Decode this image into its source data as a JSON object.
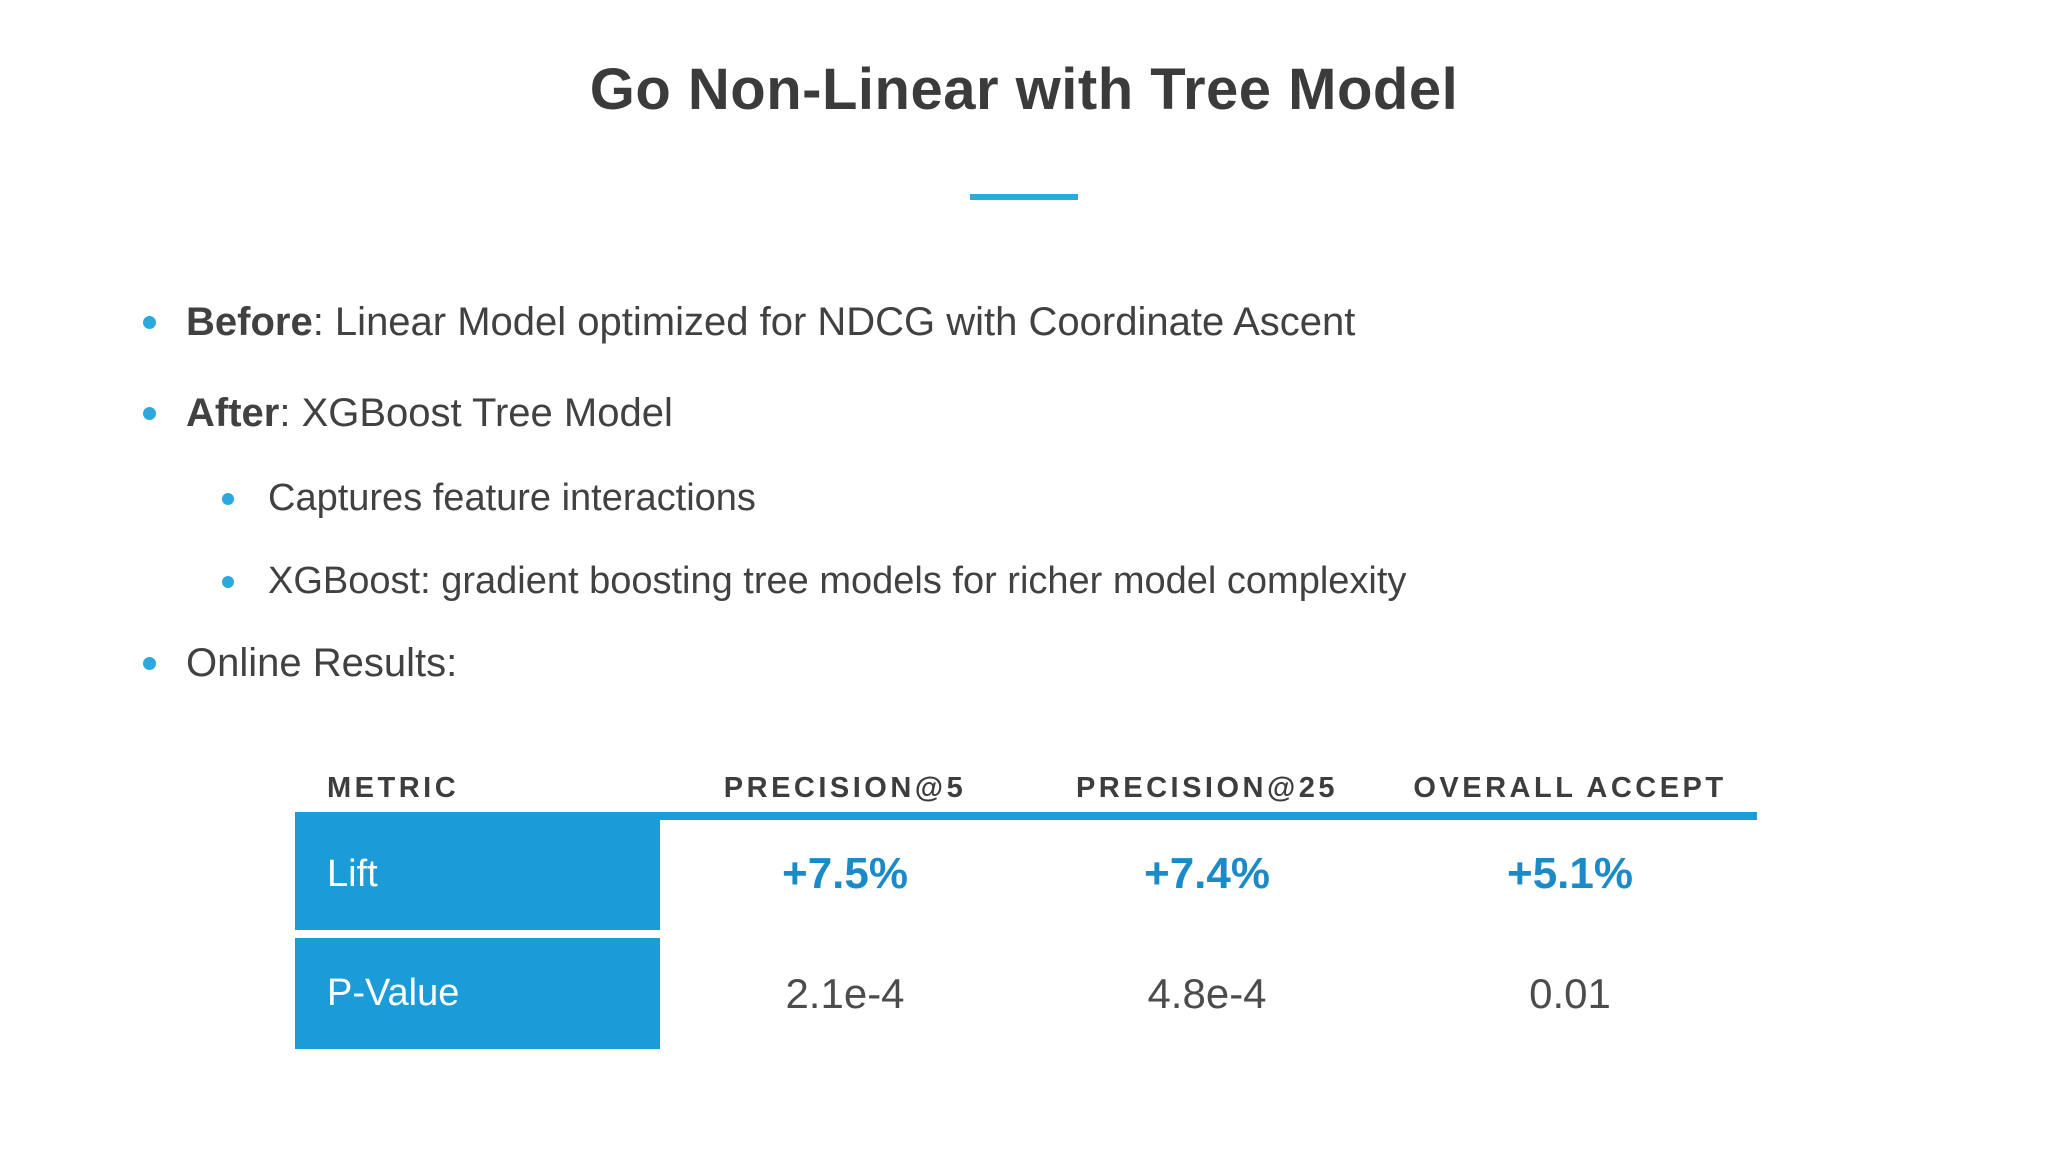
{
  "slide": {
    "title": "Go Non-Linear with Tree Model"
  },
  "bullets": [
    {
      "bold": "Before",
      "rest": ": Linear Model optimized for NDCG with Coordinate Ascent"
    },
    {
      "bold": "After",
      "rest": ": XGBoost Tree Model"
    },
    {
      "bold": "",
      "rest": "Captures feature interactions"
    },
    {
      "bold": "",
      "rest": "XGBoost: gradient boosting tree models for richer model complexity"
    },
    {
      "bold": "",
      "rest": "Online Results:"
    }
  ],
  "table": {
    "headers": [
      "METRIC",
      "PRECISION@5",
      "PRECISION@25",
      "OVERALL ACCEPT"
    ],
    "rows": [
      {
        "label": "Lift",
        "values": [
          "+7.5%",
          "+7.4%",
          "+5.1%"
        ]
      },
      {
        "label": "P-Value",
        "values": [
          "2.1e-4",
          "4.8e-4",
          "0.01"
        ]
      }
    ]
  },
  "colors": {
    "accent_blue": "#29ABE2",
    "table_blue": "#1B9BD8",
    "value_blue": "#1B8AC9",
    "title_text": "#3B3B3B",
    "body_text": "#414141",
    "muted_value": "#4C4C4C"
  }
}
